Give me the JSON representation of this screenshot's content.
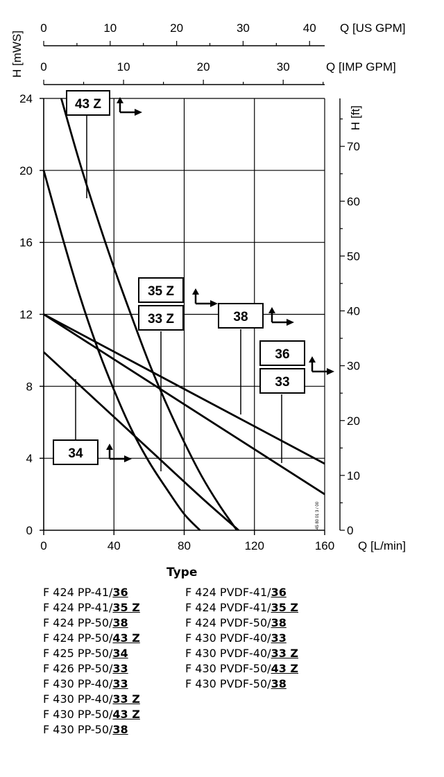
{
  "chart_data": {
    "type": "line",
    "xlabel": "Q [L/min]",
    "ylabel": "H [mWS]",
    "xlim": [
      0,
      160
    ],
    "ylim": [
      0,
      24
    ],
    "x_ticks": [
      0,
      40,
      80,
      120,
      160
    ],
    "y_ticks": [
      0,
      4,
      8,
      12,
      16,
      20,
      24
    ],
    "grid": true,
    "secondary_axes": {
      "top_us_gpm": {
        "label": "Q [US GPM]",
        "ticks": [
          0,
          10,
          20,
          30,
          40
        ]
      },
      "top_imp_gpm": {
        "label": "Q [IMP GPM]",
        "ticks": [
          0,
          10,
          20,
          30
        ]
      },
      "right_ft": {
        "label": "H [ft]",
        "ticks": [
          0,
          10,
          20,
          30,
          40,
          50,
          60,
          70
        ]
      }
    },
    "series": [
      {
        "name": "43 Z",
        "x": [
          10,
          20,
          30,
          40,
          50,
          60,
          70,
          80,
          90,
          100,
          110
        ],
        "y": [
          24,
          20.6,
          17.5,
          14.6,
          11.9,
          9.3,
          7.0,
          4.9,
          3.0,
          1.4,
          0
        ]
      },
      {
        "name": "35 Z",
        "x": [
          0,
          10,
          20,
          30,
          40,
          50,
          60,
          70,
          80,
          89
        ],
        "y": [
          20,
          16.5,
          13.2,
          10.3,
          7.8,
          5.6,
          3.8,
          2.3,
          0.9,
          0
        ]
      },
      {
        "name": "33 Z",
        "x": [
          0,
          160
        ],
        "y": [
          12,
          2
        ]
      },
      {
        "name": "38",
        "x": [
          0,
          160
        ],
        "y": [
          12,
          3.7
        ]
      },
      {
        "name": "34",
        "x": [
          0,
          30,
          60,
          90,
          111
        ],
        "y": [
          9.9,
          7.2,
          4.5,
          1.8,
          0
        ]
      }
    ],
    "annotations": [
      "43 Z",
      "35 Z",
      "33 Z",
      "38",
      "36",
      "33",
      "34"
    ],
    "side_text": "45 80 01 3 / 00"
  },
  "legend": {
    "title": "Type",
    "col1": [
      {
        "prefix": "F 424 PP-41/",
        "code": "36"
      },
      {
        "prefix": "F 424 PP-41/",
        "code": "35 Z"
      },
      {
        "prefix": "F 424 PP-50/",
        "code": "38"
      },
      {
        "prefix": "F 424 PP-50/",
        "code": "43 Z"
      },
      {
        "prefix": "F 425 PP-50/",
        "code": "34"
      },
      {
        "prefix": "F 426 PP-50/",
        "code": "33"
      },
      {
        "prefix": "F 430 PP-40/",
        "code": "33"
      },
      {
        "prefix": "F 430 PP-40/",
        "code": "33 Z"
      },
      {
        "prefix": "F 430 PP-50/",
        "code": "43 Z"
      },
      {
        "prefix": "F 430 PP-50/",
        "code": "38"
      }
    ],
    "col2": [
      {
        "prefix": "F 424 PVDF-41/",
        "code": "36"
      },
      {
        "prefix": "F 424 PVDF-41/",
        "code": "35 Z"
      },
      {
        "prefix": "F 424 PVDF-50/",
        "code": "38"
      },
      {
        "prefix": "F 430 PVDF-40/",
        "code": "33"
      },
      {
        "prefix": "F 430 PVDF-40/",
        "code": "33 Z"
      },
      {
        "prefix": "F 430 PVDF-50/",
        "code": "43 Z"
      },
      {
        "prefix": "F 430 PVDF-50/",
        "code": "38"
      }
    ]
  }
}
